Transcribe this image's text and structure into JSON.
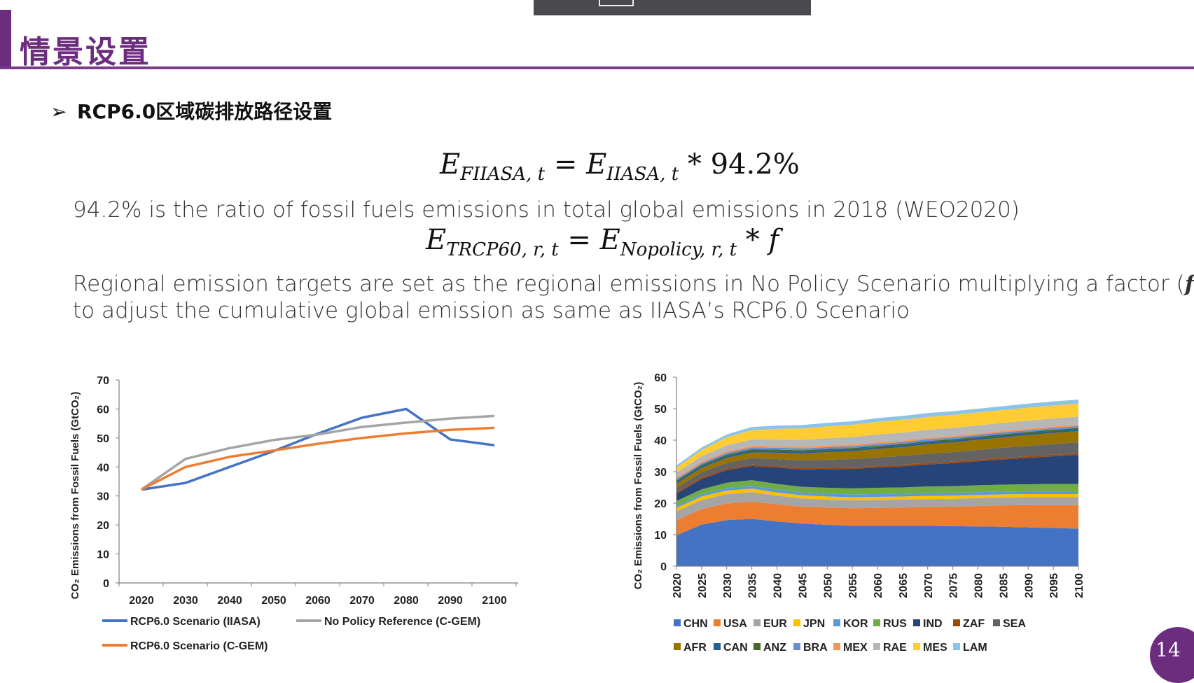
{
  "slide": {
    "title": "情景设置",
    "bullet_marker": "➢",
    "bullet": "RCP6.0区域碳排放路径设置",
    "page_number": "14"
  },
  "equations": {
    "eq1": {
      "lhs_base": "E",
      "lhs_sub": "FIIASA, t",
      "eq": "=",
      "rhs_base": "E",
      "rhs_sub": "IIASA, t",
      "op": "*",
      "value": "94.2%"
    },
    "eq2": {
      "lhs_base": "E",
      "lhs_sub": "TRCP60, r, t",
      "eq": "=",
      "rhs_base": "E",
      "rhs_sub": "Nopolicy, r, t",
      "op": "*",
      "factor": "f"
    }
  },
  "text": {
    "ratio_note": "94.2% is the ratio of fossil fuels emissions in total global emissions in 2018 (WEO2020)",
    "regional_line1_a": "Regional emission targets are set as the regional emissions in No Policy Scenario multiplying a factor (",
    "regional_line1_f": "f",
    "regional_line1_b": ")",
    "regional_line2": "to adjust the cumulative global emission as same as IIASA’s RCP6.0 Scenario"
  },
  "chart_data": [
    {
      "type": "line",
      "ylabel": "CO₂ Emissions from Fossil Fuels (GtCO₂)",
      "ylim": [
        0,
        70
      ],
      "yticks": [
        0,
        10,
        20,
        30,
        40,
        50,
        60,
        70
      ],
      "x": [
        2020,
        2030,
        2040,
        2050,
        2060,
        2070,
        2080,
        2090,
        2100
      ],
      "grid": false,
      "legend_position": "bottom",
      "series": [
        {
          "name": "RCP6.0 Scenario (IIASA)",
          "color": "#4472c4",
          "values": [
            32.2,
            34.5,
            40.0,
            45.5,
            51.5,
            57.0,
            60.0,
            49.5,
            47.5
          ]
        },
        {
          "name": "No Policy Reference (C-GEM)",
          "color": "#a5a5a5",
          "values": [
            32.2,
            42.8,
            46.5,
            49.3,
            51.2,
            53.8,
            55.3,
            56.7,
            57.6
          ]
        },
        {
          "name": "RCP6.0 Scenario (C-GEM)",
          "color": "#ed7d31",
          "values": [
            32.2,
            40.0,
            43.5,
            45.7,
            48.0,
            50.0,
            51.6,
            52.8,
            53.5
          ]
        }
      ]
    },
    {
      "type": "area",
      "stacked": true,
      "ylabel": "CO₂ Emissions from Fossil Fuels (GtCO₂)",
      "ylim": [
        0,
        60
      ],
      "yticks": [
        0,
        10,
        20,
        30,
        40,
        50,
        60
      ],
      "x": [
        2020,
        2025,
        2030,
        2035,
        2040,
        2045,
        2050,
        2055,
        2060,
        2065,
        2070,
        2075,
        2080,
        2085,
        2090,
        2095,
        2100
      ],
      "grid": false,
      "legend_position": "bottom",
      "series": [
        {
          "name": "CHN",
          "color": "#4472c4",
          "values": [
            9.8,
            13.2,
            14.6,
            15.0,
            14.2,
            13.5,
            13.1,
            12.8,
            12.8,
            12.8,
            12.8,
            12.7,
            12.6,
            12.5,
            12.3,
            12.1,
            11.9
          ]
        },
        {
          "name": "USA",
          "color": "#ed7d31",
          "values": [
            4.8,
            4.9,
            5.3,
            5.5,
            5.4,
            5.4,
            5.5,
            5.6,
            5.7,
            5.8,
            6.0,
            6.2,
            6.5,
            6.8,
            7.1,
            7.3,
            7.5
          ]
        },
        {
          "name": "EUR",
          "color": "#a5a5a5",
          "values": [
            2.8,
            2.9,
            3.0,
            3.0,
            2.8,
            2.6,
            2.5,
            2.5,
            2.5,
            2.5,
            2.5,
            2.5,
            2.5,
            2.5,
            2.5,
            2.5,
            2.5
          ]
        },
        {
          "name": "JPN",
          "color": "#ffc000",
          "values": [
            1.1,
            1.1,
            1.1,
            1.1,
            1.0,
            1.0,
            1.0,
            1.0,
            1.0,
            1.0,
            1.0,
            1.0,
            1.0,
            1.0,
            1.0,
            1.0,
            1.0
          ]
        },
        {
          "name": "KOR",
          "color": "#5b9bd5",
          "values": [
            0.6,
            0.7,
            0.8,
            0.9,
            0.9,
            0.9,
            0.9,
            0.9,
            0.9,
            0.9,
            0.9,
            0.9,
            0.9,
            0.9,
            0.9,
            0.9,
            0.9
          ]
        },
        {
          "name": "RUS",
          "color": "#70ad47",
          "values": [
            1.6,
            1.6,
            1.7,
            1.8,
            1.8,
            1.8,
            1.9,
            1.9,
            2.0,
            2.0,
            2.1,
            2.1,
            2.2,
            2.2,
            2.2,
            2.3,
            2.3
          ]
        },
        {
          "name": "IND",
          "color": "#264478",
          "values": [
            2.3,
            3.3,
            4.0,
            4.5,
            5.2,
            5.5,
            5.9,
            6.2,
            6.4,
            6.7,
            7.0,
            7.3,
            7.6,
            8.0,
            8.4,
            8.8,
            9.2
          ]
        },
        {
          "name": "ZAF",
          "color": "#9e480e",
          "values": [
            0.5,
            0.5,
            0.5,
            0.5,
            0.5,
            0.5,
            0.5,
            0.5,
            0.5,
            0.5,
            0.5,
            0.5,
            0.5,
            0.5,
            0.5,
            0.5,
            0.5
          ]
        },
        {
          "name": "SEA",
          "color": "#636363",
          "values": [
            1.4,
            1.6,
            1.8,
            2.0,
            2.2,
            2.4,
            2.5,
            2.6,
            2.7,
            2.8,
            2.9,
            3.0,
            3.1,
            3.2,
            3.3,
            3.4,
            3.5
          ]
        },
        {
          "name": "AFR",
          "color": "#997300",
          "values": [
            1.3,
            1.4,
            1.6,
            1.8,
            2.0,
            2.2,
            2.4,
            2.5,
            2.7,
            2.8,
            3.0,
            3.1,
            3.2,
            3.3,
            3.4,
            3.5,
            3.6
          ]
        },
        {
          "name": "CAN",
          "color": "#255e91",
          "values": [
            0.6,
            0.6,
            0.6,
            0.6,
            0.6,
            0.6,
            0.6,
            0.6,
            0.6,
            0.6,
            0.6,
            0.6,
            0.6,
            0.6,
            0.6,
            0.6,
            0.6
          ]
        },
        {
          "name": "ANZ",
          "color": "#43682b",
          "values": [
            0.4,
            0.4,
            0.4,
            0.4,
            0.4,
            0.4,
            0.4,
            0.4,
            0.4,
            0.4,
            0.4,
            0.4,
            0.4,
            0.4,
            0.4,
            0.4,
            0.4
          ]
        },
        {
          "name": "BRA",
          "color": "#698ed0",
          "values": [
            0.5,
            0.5,
            0.6,
            0.6,
            0.6,
            0.6,
            0.6,
            0.6,
            0.6,
            0.6,
            0.6,
            0.6,
            0.6,
            0.6,
            0.6,
            0.6,
            0.6
          ]
        },
        {
          "name": "MEX",
          "color": "#f1975a",
          "values": [
            0.5,
            0.5,
            0.5,
            0.5,
            0.5,
            0.5,
            0.5,
            0.5,
            0.5,
            0.5,
            0.5,
            0.5,
            0.5,
            0.5,
            0.5,
            0.5,
            0.5
          ]
        },
        {
          "name": "RAE",
          "color": "#b7b7b7",
          "values": [
            1.5,
            1.7,
            1.9,
            2.0,
            2.1,
            2.2,
            2.3,
            2.4,
            2.5,
            2.5,
            2.5,
            2.5,
            2.5,
            2.5,
            2.5,
            2.5,
            2.5
          ]
        },
        {
          "name": "MES",
          "color": "#ffcd33",
          "values": [
            1.6,
            2.0,
            2.5,
            3.0,
            3.4,
            3.6,
            3.8,
            3.9,
            4.0,
            4.1,
            4.1,
            4.1,
            4.1,
            4.1,
            4.1,
            4.1,
            4.1
          ]
        },
        {
          "name": "LAM",
          "color": "#8cc3e9",
          "values": [
            0.7,
            0.8,
            0.9,
            1.0,
            1.0,
            1.1,
            1.1,
            1.1,
            1.2,
            1.2,
            1.2,
            1.2,
            1.2,
            1.2,
            1.3,
            1.3,
            1.3
          ]
        }
      ]
    }
  ]
}
